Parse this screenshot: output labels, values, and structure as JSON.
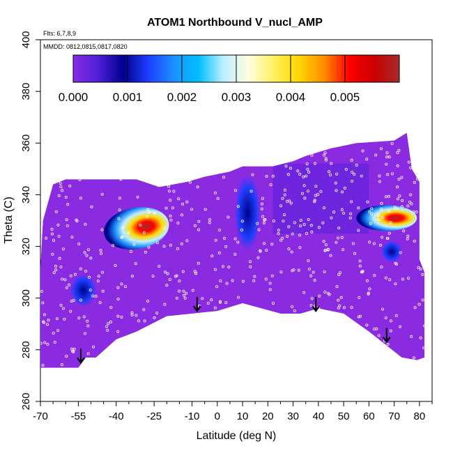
{
  "chart_data": {
    "type": "heatmap",
    "title": "ATOM1 Northbound V_nucl_AMP",
    "annotations": [
      "Flts: 6,7,8,9",
      "MMDD: 0812,0815,0817,0820"
    ],
    "xlabel": "Latitude (deg N)",
    "ylabel": "Theta (C)",
    "xlim": [
      -70,
      85
    ],
    "ylim": [
      260,
      400
    ],
    "x_ticks": [
      -70,
      -55,
      -40,
      -25,
      -10,
      0,
      10,
      20,
      30,
      40,
      50,
      60,
      70,
      80
    ],
    "y_ticks": [
      260,
      280,
      300,
      320,
      340,
      360,
      380,
      400
    ],
    "colorbar": {
      "ticks": [
        "0.000",
        "0.001",
        "0.002",
        "0.003",
        "0.004",
        "0.005"
      ],
      "range": [
        0,
        0.006
      ],
      "colors": [
        "#8a2be2",
        "#4b1fd8",
        "#00008b",
        "#1e3fff",
        "#1e90ff",
        "#00bfff",
        "#bfefff",
        "#ffffe0",
        "#fff060",
        "#ffd700",
        "#ff8c00",
        "#ff0000",
        "#c80000",
        "#a52a2a"
      ]
    },
    "domain_outline": [
      [
        -72,
        312
      ],
      [
        -70,
        312
      ],
      [
        -69,
        330
      ],
      [
        -65,
        344
      ],
      [
        -60,
        346
      ],
      [
        -45,
        346
      ],
      [
        -32,
        346
      ],
      [
        -23,
        343
      ],
      [
        -12,
        345
      ],
      [
        -5,
        347
      ],
      [
        5,
        349
      ],
      [
        10,
        351
      ],
      [
        22,
        351
      ],
      [
        30,
        353
      ],
      [
        35,
        355
      ],
      [
        45,
        358
      ],
      [
        55,
        360
      ],
      [
        70,
        361
      ],
      [
        75,
        364
      ],
      [
        77,
        350
      ],
      [
        80,
        345
      ],
      [
        80,
        315
      ],
      [
        82,
        310
      ],
      [
        82,
        277
      ],
      [
        79,
        276
      ],
      [
        73,
        277
      ],
      [
        60,
        287
      ],
      [
        50,
        294
      ],
      [
        40,
        296
      ],
      [
        33,
        294
      ],
      [
        25,
        294
      ],
      [
        10,
        298
      ],
      [
        0,
        295
      ],
      [
        -10,
        294
      ],
      [
        -20,
        293
      ],
      [
        -32,
        287
      ],
      [
        -40,
        284
      ],
      [
        -48,
        277
      ],
      [
        -52,
        277
      ],
      [
        -55,
        273
      ],
      [
        -72,
        273
      ]
    ],
    "blobs": [
      {
        "label": "southern-maximum",
        "cx": -32,
        "cy": 327,
        "value": 0.0055
      },
      {
        "label": "northern-maximum",
        "cx": 67,
        "cy": 331,
        "value": 0.0055
      },
      {
        "label": "southern-low",
        "cx": -53,
        "cy": 303,
        "value": 0.001
      },
      {
        "label": "tropical-column",
        "cx": 12,
        "cy": 333,
        "value": 0.0012
      },
      {
        "label": "polar-low",
        "cx": 69,
        "cy": 318,
        "value": 0.001
      }
    ],
    "arrow_latitudes": [
      -54,
      -8,
      39,
      67
    ],
    "arrow_thetas": [
      275,
      295,
      295,
      283
    ]
  }
}
